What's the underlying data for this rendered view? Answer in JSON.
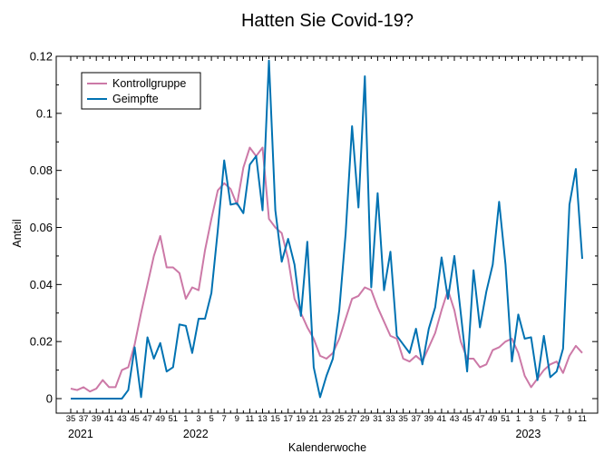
{
  "chart_data": {
    "type": "line",
    "title": "Hatten Sie Covid-19?",
    "xlabel": "Kalenderwoche",
    "ylabel": "Anteil",
    "ylim": [
      0,
      0.12
    ],
    "yticks": [
      "0",
      "0.02",
      "0.04",
      "0.06",
      "0.08",
      "0.1",
      "0.12"
    ],
    "ytick_values": [
      0,
      0.02,
      0.04,
      0.06,
      0.08,
      0.1,
      0.12
    ],
    "x_label_step": 2,
    "weeks": [
      "35",
      "36",
      "37",
      "38",
      "39",
      "40",
      "41",
      "42",
      "43",
      "44",
      "45",
      "46",
      "47",
      "48",
      "49",
      "50",
      "51",
      "52",
      "1",
      "2",
      "3",
      "4",
      "5",
      "6",
      "7",
      "8",
      "9",
      "10",
      "11",
      "12",
      "13",
      "14",
      "15",
      "16",
      "17",
      "18",
      "19",
      "20",
      "21",
      "22",
      "23",
      "24",
      "25",
      "26",
      "27",
      "28",
      "29",
      "30",
      "31",
      "32",
      "33",
      "34",
      "35",
      "36",
      "37",
      "38",
      "39",
      "40",
      "41",
      "42",
      "43",
      "44",
      "45",
      "46",
      "47",
      "48",
      "49",
      "50",
      "51",
      "52",
      "1",
      "2",
      "3",
      "4",
      "5",
      "6",
      "7",
      "8",
      "9",
      "10",
      "11"
    ],
    "year_labels": [
      {
        "label": "2021",
        "week_index": 0
      },
      {
        "label": "2022",
        "week_index": 18
      },
      {
        "label": "2023",
        "week_index": 70
      }
    ],
    "legend_position": "top-left",
    "grid": false,
    "series": [
      {
        "name": "Kontrollgruppe",
        "color": "#cc79a7",
        "values": [
          0.0035,
          0.003,
          0.004,
          0.0025,
          0.0035,
          0.0065,
          0.004,
          0.004,
          0.01,
          0.011,
          0.019,
          0.03,
          0.04,
          0.05,
          0.057,
          0.046,
          0.046,
          0.044,
          0.035,
          0.039,
          0.038,
          0.052,
          0.063,
          0.073,
          0.0755,
          0.0735,
          0.068,
          0.081,
          0.088,
          0.085,
          0.088,
          0.063,
          0.06,
          0.058,
          0.049,
          0.035,
          0.03,
          0.025,
          0.021,
          0.015,
          0.014,
          0.016,
          0.021,
          0.028,
          0.035,
          0.036,
          0.039,
          0.038,
          0.032,
          0.027,
          0.022,
          0.021,
          0.014,
          0.013,
          0.015,
          0.013,
          0.018,
          0.023,
          0.031,
          0.038,
          0.031,
          0.02,
          0.014,
          0.014,
          0.011,
          0.012,
          0.017,
          0.018,
          0.02,
          0.021,
          0.016,
          0.008,
          0.004,
          0.007,
          0.01,
          0.012,
          0.013,
          0.009,
          0.015,
          0.0185,
          0.016
        ]
      },
      {
        "name": "Geimpfte",
        "color": "#0072b2",
        "values": [
          0,
          0,
          0,
          0,
          0,
          0,
          0,
          0,
          0,
          0.003,
          0.018,
          0.0005,
          0.0215,
          0.014,
          0.0195,
          0.0095,
          0.011,
          0.026,
          0.0255,
          0.016,
          0.028,
          0.028,
          0.037,
          0.059,
          0.0835,
          0.068,
          0.0685,
          0.065,
          0.082,
          0.085,
          0.066,
          0.1185,
          0.066,
          0.048,
          0.056,
          0.047,
          0.029,
          0.055,
          0.011,
          0.0005,
          0.008,
          0.014,
          0.031,
          0.058,
          0.0955,
          0.067,
          0.113,
          0.039,
          0.072,
          0.038,
          0.0515,
          0.022,
          0.019,
          0.016,
          0.0245,
          0.012,
          0.0245,
          0.032,
          0.0495,
          0.035,
          0.05,
          0.03,
          0.0095,
          0.045,
          0.025,
          0.0375,
          0.047,
          0.069,
          0.047,
          0.013,
          0.0295,
          0.021,
          0.0215,
          0.0065,
          0.022,
          0.0075,
          0.0095,
          0.0175,
          0.068,
          0.0805,
          0.049
        ]
      }
    ]
  }
}
